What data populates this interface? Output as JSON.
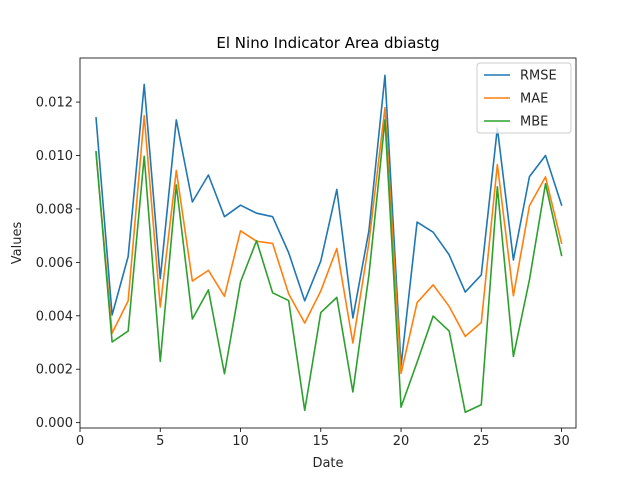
{
  "chart_data": {
    "type": "line",
    "title": "El Nino Indicator Area dbiastg",
    "xlabel": "Date",
    "ylabel": "Values",
    "xlim": [
      0.0,
      30.9
    ],
    "ylim": [
      -0.0002,
      0.01365
    ],
    "xticks": [
      0,
      5,
      10,
      15,
      20,
      25,
      30
    ],
    "xtick_labels": [
      "0",
      "5",
      "10",
      "15",
      "20",
      "25",
      "30"
    ],
    "yticks": [
      0.0,
      0.002,
      0.004,
      0.006,
      0.008,
      0.01,
      0.012
    ],
    "ytick_labels": [
      "0.000",
      "0.002",
      "0.004",
      "0.006",
      "0.008",
      "0.010",
      "0.012"
    ],
    "legend_position": "top-right",
    "grid": false,
    "x": [
      1,
      2,
      3,
      4,
      5,
      6,
      7,
      8,
      9,
      10,
      11,
      12,
      13,
      14,
      15,
      16,
      17,
      18,
      19,
      20,
      21,
      22,
      23,
      24,
      25,
      26,
      27,
      28,
      29,
      30
    ],
    "series": [
      {
        "name": "RMSE",
        "color": "#1f77b4",
        "values": [
          0.01141,
          0.00403,
          0.00622,
          0.01266,
          0.00539,
          0.01133,
          0.00826,
          0.00927,
          0.00771,
          0.00814,
          0.00784,
          0.00771,
          0.00636,
          0.00456,
          0.00605,
          0.00873,
          0.00392,
          0.00719,
          0.013,
          0.00213,
          0.00751,
          0.00713,
          0.00628,
          0.00489,
          0.00553,
          0.01103,
          0.00609,
          0.00921,
          0.01,
          0.00815
        ]
      },
      {
        "name": "MAE",
        "color": "#ff7f0e",
        "values": [
          0.01008,
          0.00335,
          0.00456,
          0.01149,
          0.00433,
          0.00944,
          0.0053,
          0.0057,
          0.00473,
          0.00718,
          0.00679,
          0.00671,
          0.00482,
          0.00373,
          0.00493,
          0.00652,
          0.00298,
          0.00674,
          0.01179,
          0.00184,
          0.00449,
          0.00516,
          0.00435,
          0.00323,
          0.00375,
          0.00966,
          0.00475,
          0.00812,
          0.0092,
          0.00672
        ]
      },
      {
        "name": "MBE",
        "color": "#2ca02c",
        "values": [
          0.01014,
          0.00302,
          0.00343,
          0.00997,
          0.00229,
          0.0089,
          0.00388,
          0.00497,
          0.00183,
          0.00527,
          0.00681,
          0.00486,
          0.00457,
          0.00046,
          0.00412,
          0.00469,
          0.00115,
          0.00553,
          0.01133,
          0.00058,
          0.00226,
          0.00399,
          0.00343,
          0.00039,
          0.00067,
          0.00883,
          0.00248,
          0.00535,
          0.00894,
          0.00626
        ]
      }
    ]
  }
}
